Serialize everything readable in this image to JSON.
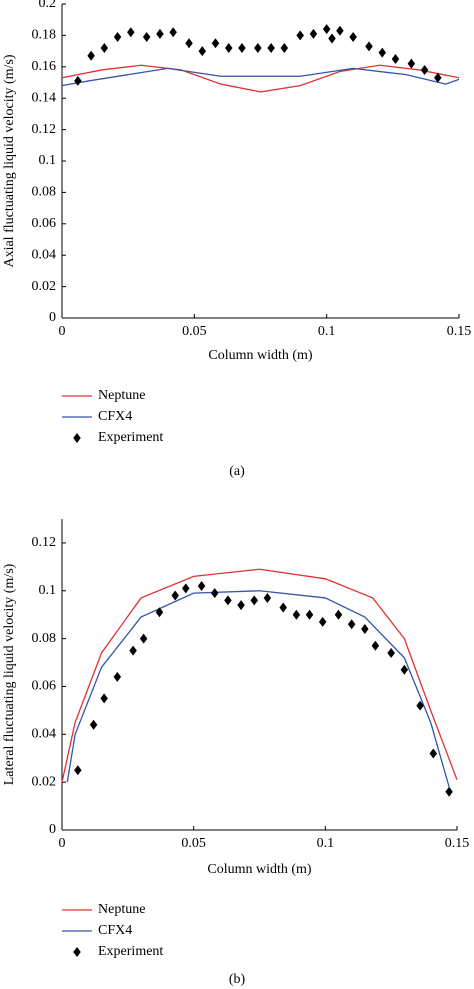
{
  "chart_data": [
    {
      "type": "line",
      "xlabel": "Column width (m)",
      "ylabel": "Axial fluctuating liquid velocity (m/s)",
      "caption": "(a)",
      "xlim": [
        0,
        0.15
      ],
      "xticks": [
        0,
        0.05,
        0.1,
        0.15
      ],
      "ylim": [
        0,
        0.2
      ],
      "yticks": [
        0,
        0.02,
        0.04,
        0.06,
        0.08,
        0.1,
        0.12,
        0.14,
        0.16,
        0.18,
        0.2
      ],
      "series": [
        {
          "name": "Neptune",
          "color": "#e03333",
          "marker": "none",
          "x": [
            0,
            0.015,
            0.03,
            0.045,
            0.06,
            0.075,
            0.09,
            0.105,
            0.12,
            0.135,
            0.15
          ],
          "values": [
            0.153,
            0.158,
            0.161,
            0.158,
            0.149,
            0.144,
            0.148,
            0.157,
            0.161,
            0.158,
            0.153
          ]
        },
        {
          "name": "CFX4",
          "color": "#3355aa",
          "marker": "none",
          "x": [
            0,
            0.01,
            0.025,
            0.04,
            0.06,
            0.075,
            0.09,
            0.11,
            0.13,
            0.145,
            0.15
          ],
          "values": [
            0.148,
            0.151,
            0.155,
            0.159,
            0.154,
            0.154,
            0.154,
            0.159,
            0.155,
            0.149,
            0.152
          ]
        },
        {
          "name": "Experiment",
          "color": "#000000",
          "marker": "diamond",
          "x": [
            0.006,
            0.011,
            0.016,
            0.021,
            0.026,
            0.032,
            0.037,
            0.042,
            0.048,
            0.053,
            0.058,
            0.063,
            0.068,
            0.074,
            0.079,
            0.084,
            0.09,
            0.095,
            0.1,
            0.102,
            0.105,
            0.11,
            0.116,
            0.121,
            0.126,
            0.132,
            0.137,
            0.142
          ],
          "values": [
            0.151,
            0.167,
            0.172,
            0.179,
            0.182,
            0.179,
            0.181,
            0.182,
            0.175,
            0.17,
            0.175,
            0.172,
            0.172,
            0.172,
            0.172,
            0.172,
            0.18,
            0.181,
            0.184,
            0.178,
            0.183,
            0.179,
            0.173,
            0.169,
            0.165,
            0.162,
            0.158,
            0.153
          ]
        }
      ]
    },
    {
      "type": "line",
      "xlabel": "Column width (m)",
      "ylabel": "Lateral fluctuating liquid velocity (m/s)",
      "caption": "(b)",
      "xlim": [
        0,
        0.15
      ],
      "xticks": [
        0,
        0.05,
        0.1,
        0.15
      ],
      "ylim": [
        0,
        0.13
      ],
      "yticks": [
        0,
        0.02,
        0.04,
        0.06,
        0.08,
        0.1,
        0.12
      ],
      "series": [
        {
          "name": "Neptune",
          "color": "#e03333",
          "marker": "none",
          "x": [
            0,
            0.005,
            0.015,
            0.03,
            0.05,
            0.075,
            0.1,
            0.118,
            0.13,
            0.14,
            0.15
          ],
          "values": [
            0.02,
            0.045,
            0.074,
            0.097,
            0.106,
            0.109,
            0.105,
            0.097,
            0.08,
            0.05,
            0.021
          ]
        },
        {
          "name": "CFX4",
          "color": "#3355aa",
          "marker": "none",
          "x": [
            0.002,
            0.005,
            0.015,
            0.03,
            0.05,
            0.075,
            0.1,
            0.115,
            0.13,
            0.14,
            0.147
          ],
          "values": [
            0.02,
            0.04,
            0.068,
            0.089,
            0.099,
            0.1,
            0.097,
            0.089,
            0.072,
            0.045,
            0.018
          ]
        },
        {
          "name": "Experiment",
          "color": "#000000",
          "marker": "diamond",
          "x": [
            0.006,
            0.012,
            0.016,
            0.021,
            0.027,
            0.031,
            0.037,
            0.043,
            0.047,
            0.053,
            0.058,
            0.063,
            0.068,
            0.073,
            0.078,
            0.084,
            0.089,
            0.094,
            0.099,
            0.105,
            0.11,
            0.115,
            0.119,
            0.125,
            0.13,
            0.136,
            0.141,
            0.147
          ],
          "values": [
            0.025,
            0.044,
            0.055,
            0.064,
            0.075,
            0.08,
            0.091,
            0.098,
            0.101,
            0.102,
            0.099,
            0.096,
            0.094,
            0.096,
            0.097,
            0.093,
            0.09,
            0.09,
            0.087,
            0.09,
            0.086,
            0.084,
            0.077,
            0.074,
            0.067,
            0.052,
            0.032,
            0.016
          ]
        }
      ]
    }
  ]
}
